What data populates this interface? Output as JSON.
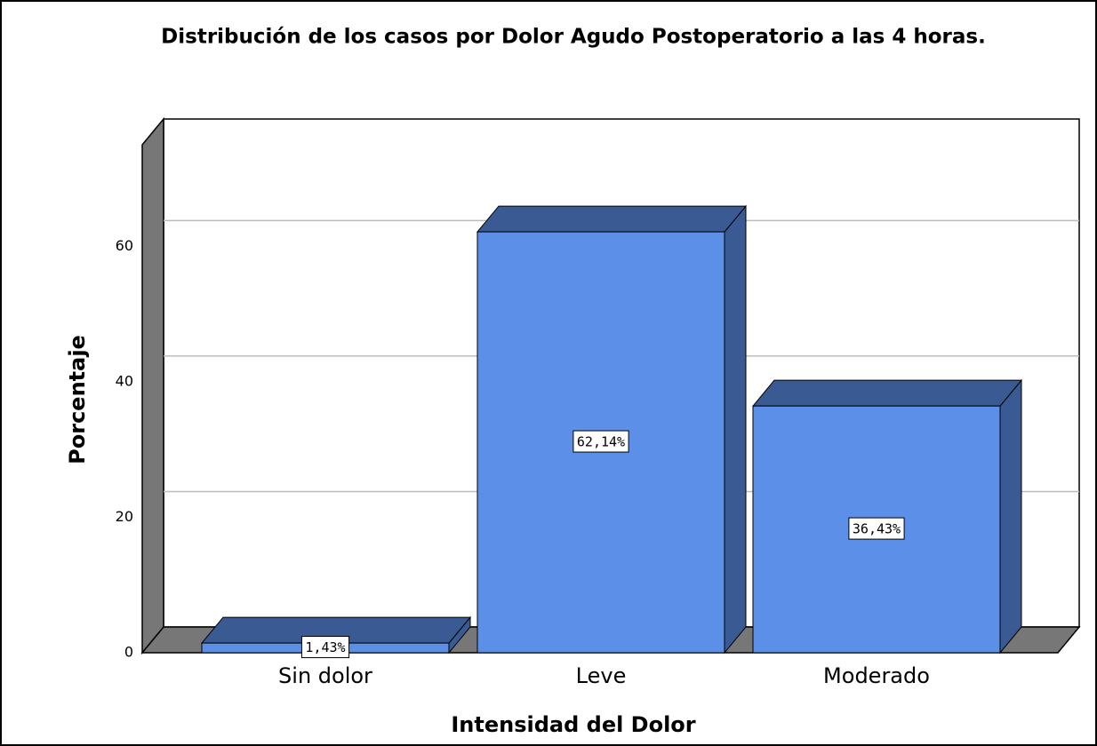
{
  "chart_data": {
    "type": "bar3d",
    "title": "Distribución de los casos por Dolor Agudo Postoperatorio a las 4 horas.",
    "x_label": "Intensidad del Dolor",
    "y_label": "Porcentaje",
    "categories": [
      "Sin dolor",
      "Leve",
      "Moderado"
    ],
    "values": [
      1.43,
      62.14,
      36.43
    ],
    "value_labels": [
      "1,43%",
      "62,14%",
      "36,43%"
    ],
    "color": "#5b8fe8",
    "ylim": [
      0,
      75
    ],
    "yticks": [
      0,
      20,
      40,
      60
    ],
    "grid": true
  }
}
